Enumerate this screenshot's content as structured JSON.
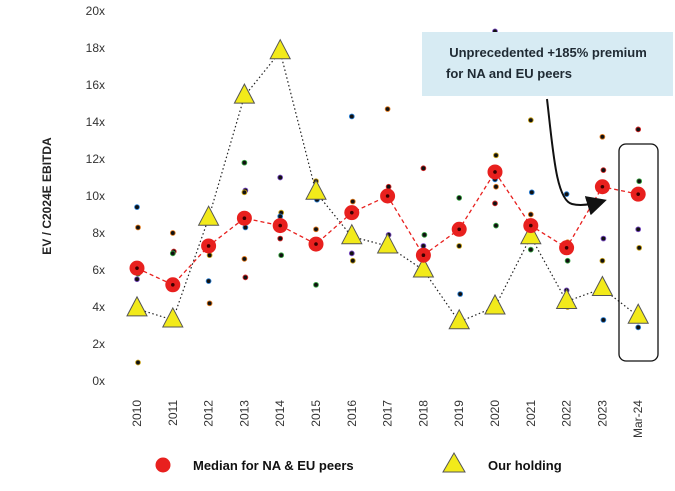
{
  "chart_data": {
    "type": "scatter",
    "title": "",
    "xlabel": "",
    "ylabel": "EV / C2024E EBITDA",
    "ylim": [
      0,
      20
    ],
    "yticks": [
      "0x",
      "2x",
      "4x",
      "6x",
      "8x",
      "10x",
      "12x",
      "14x",
      "16x",
      "18x",
      "20x"
    ],
    "categories": [
      "2010",
      "2011",
      "2012",
      "2013",
      "2014",
      "2015",
      "2016",
      "2017",
      "2018",
      "2019",
      "2020",
      "2021",
      "2022",
      "2023",
      "Mar-24"
    ],
    "series": [
      {
        "name": "Median for NA & EU peers",
        "style": "red-circle-dashed",
        "color": "#e8201e",
        "values": [
          6.1,
          5.2,
          7.3,
          8.8,
          8.4,
          7.4,
          9.1,
          10.0,
          6.8,
          8.2,
          11.3,
          8.4,
          7.2,
          10.5,
          10.1
        ]
      },
      {
        "name": "Our holding",
        "style": "yellow-triangle-dotted",
        "color": "#f2ea1a",
        "values": [
          3.9,
          3.3,
          8.8,
          15.4,
          17.8,
          10.2,
          7.8,
          7.3,
          6.0,
          3.2,
          4.0,
          7.8,
          4.3,
          5.0,
          3.5
        ]
      }
    ],
    "peer_dots": [
      {
        "x": "2010",
        "values": [
          9.4,
          8.3,
          6.0,
          5.8,
          5.5,
          1.0
        ]
      },
      {
        "x": "2011",
        "values": [
          8.0,
          7.0,
          6.9,
          5.2,
          5.0,
          3.4
        ]
      },
      {
        "x": "2012",
        "values": [
          9.0,
          8.9,
          7.4,
          6.8,
          5.4,
          4.2
        ]
      },
      {
        "x": "2013",
        "values": [
          11.8,
          10.3,
          10.2,
          8.3,
          6.6,
          5.6
        ]
      },
      {
        "x": "2014",
        "values": [
          11.0,
          9.1,
          8.9,
          8.5,
          7.7,
          6.8
        ]
      },
      {
        "x": "2015",
        "values": [
          10.8,
          9.8,
          8.2,
          7.5,
          5.2
        ]
      },
      {
        "x": "2016",
        "values": [
          14.3,
          9.7,
          9.2,
          8.0,
          6.9,
          6.5
        ]
      },
      {
        "x": "2017",
        "values": [
          14.7,
          10.5,
          9.8,
          7.9,
          7.2
        ]
      },
      {
        "x": "2018",
        "values": [
          11.5,
          7.9,
          7.3,
          6.9,
          6.6,
          6.1
        ]
      },
      {
        "x": "2019",
        "values": [
          9.9,
          8.3,
          7.3,
          4.7
        ]
      },
      {
        "x": "2020",
        "values": [
          18.9,
          12.2,
          10.9,
          10.5,
          9.6,
          8.4
        ]
      },
      {
        "x": "2021",
        "values": [
          14.1,
          10.2,
          9.0,
          8.5,
          7.1
        ]
      },
      {
        "x": "2022",
        "values": [
          10.1,
          7.5,
          7.3,
          6.5,
          4.9,
          4.0
        ]
      },
      {
        "x": "2023",
        "values": [
          13.2,
          11.4,
          10.5,
          7.7,
          6.5,
          3.3
        ]
      },
      {
        "x": "Mar-24",
        "values": [
          13.6,
          10.8,
          8.2,
          7.2,
          2.9
        ]
      }
    ],
    "annotation": {
      "text_lines": [
        "Unprecedented +185% premium",
        "for NA and EU peers"
      ],
      "target_category": "Mar-24"
    },
    "legend": [
      {
        "label": "Median for NA & EU peers",
        "marker": "red-circle"
      },
      {
        "label": "Our holding",
        "marker": "yellow-triangle"
      }
    ],
    "legend_placement": "bottom"
  }
}
